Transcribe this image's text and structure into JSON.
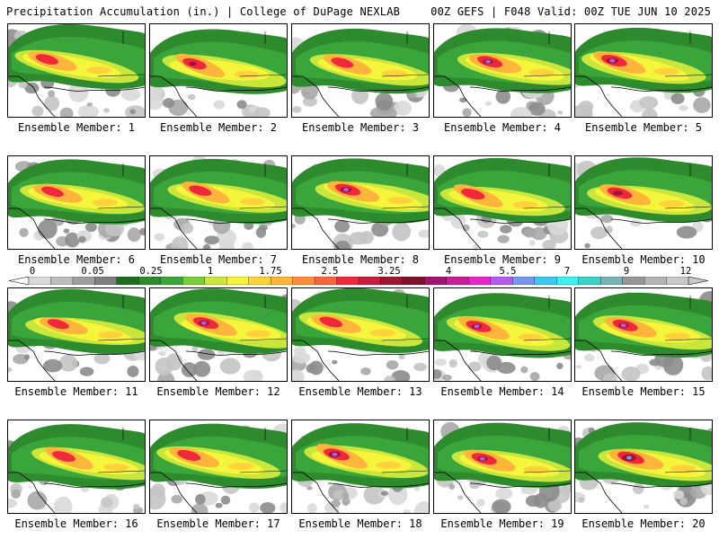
{
  "header": {
    "left": "Precipitation Accumulation (in.) | College of DuPage NEXLAB",
    "right": "00Z GEFS | F048 Valid: 00Z TUE JUN 10 2025"
  },
  "colorbar": {
    "tick_labels": [
      "0",
      "0.05",
      "0.25",
      "1",
      "1.75",
      "2.5",
      "3.25",
      "4",
      "5.5",
      "7",
      "9",
      "12"
    ],
    "colors": [
      "#d9d9d9",
      "#bdbdbd",
      "#9e9e9e",
      "#7f7f7f",
      "#1f6e1f",
      "#2d8b2d",
      "#3aa53a",
      "#7ccd3c",
      "#c8e63c",
      "#f5f53c",
      "#ffd23c",
      "#ffb43c",
      "#ff8c3c",
      "#ff643c",
      "#f0283c",
      "#c81e3c",
      "#a01432",
      "#82102a",
      "#a0146e",
      "#c81e96",
      "#e628c8",
      "#b45af0",
      "#7896f0",
      "#3cc8f0",
      "#3cf0f0",
      "#3cd2c8",
      "#78b4b4",
      "#969696",
      "#b4b4b4",
      "#c8c8c8"
    ]
  },
  "members": [
    {
      "label": "Ensemble Member: 1",
      "intensity": 0.62
    },
    {
      "label": "Ensemble Member: 2",
      "intensity": 0.72
    },
    {
      "label": "Ensemble Member: 3",
      "intensity": 0.6
    },
    {
      "label": "Ensemble Member: 4",
      "intensity": 0.8
    },
    {
      "label": "Ensemble Member: 5",
      "intensity": 0.85
    },
    {
      "label": "Ensemble Member: 6",
      "intensity": 0.6
    },
    {
      "label": "Ensemble Member: 7",
      "intensity": 0.62
    },
    {
      "label": "Ensemble Member: 8",
      "intensity": 0.82
    },
    {
      "label": "Ensemble Member: 9",
      "intensity": 0.7
    },
    {
      "label": "Ensemble Member: 10",
      "intensity": 0.78
    },
    {
      "label": "Ensemble Member: 11",
      "intensity": 0.55
    },
    {
      "label": "Ensemble Member: 12",
      "intensity": 0.82
    },
    {
      "label": "Ensemble Member: 13",
      "intensity": 0.64
    },
    {
      "label": "Ensemble Member: 14",
      "intensity": 0.8
    },
    {
      "label": "Ensemble Member: 15",
      "intensity": 0.8
    },
    {
      "label": "Ensemble Member: 16",
      "intensity": 0.66
    },
    {
      "label": "Ensemble Member: 17",
      "intensity": 0.68
    },
    {
      "label": "Ensemble Member: 18",
      "intensity": 0.85
    },
    {
      "label": "Ensemble Member: 19",
      "intensity": 0.8
    },
    {
      "label": "Ensemble Member: 20",
      "intensity": 0.92
    }
  ]
}
